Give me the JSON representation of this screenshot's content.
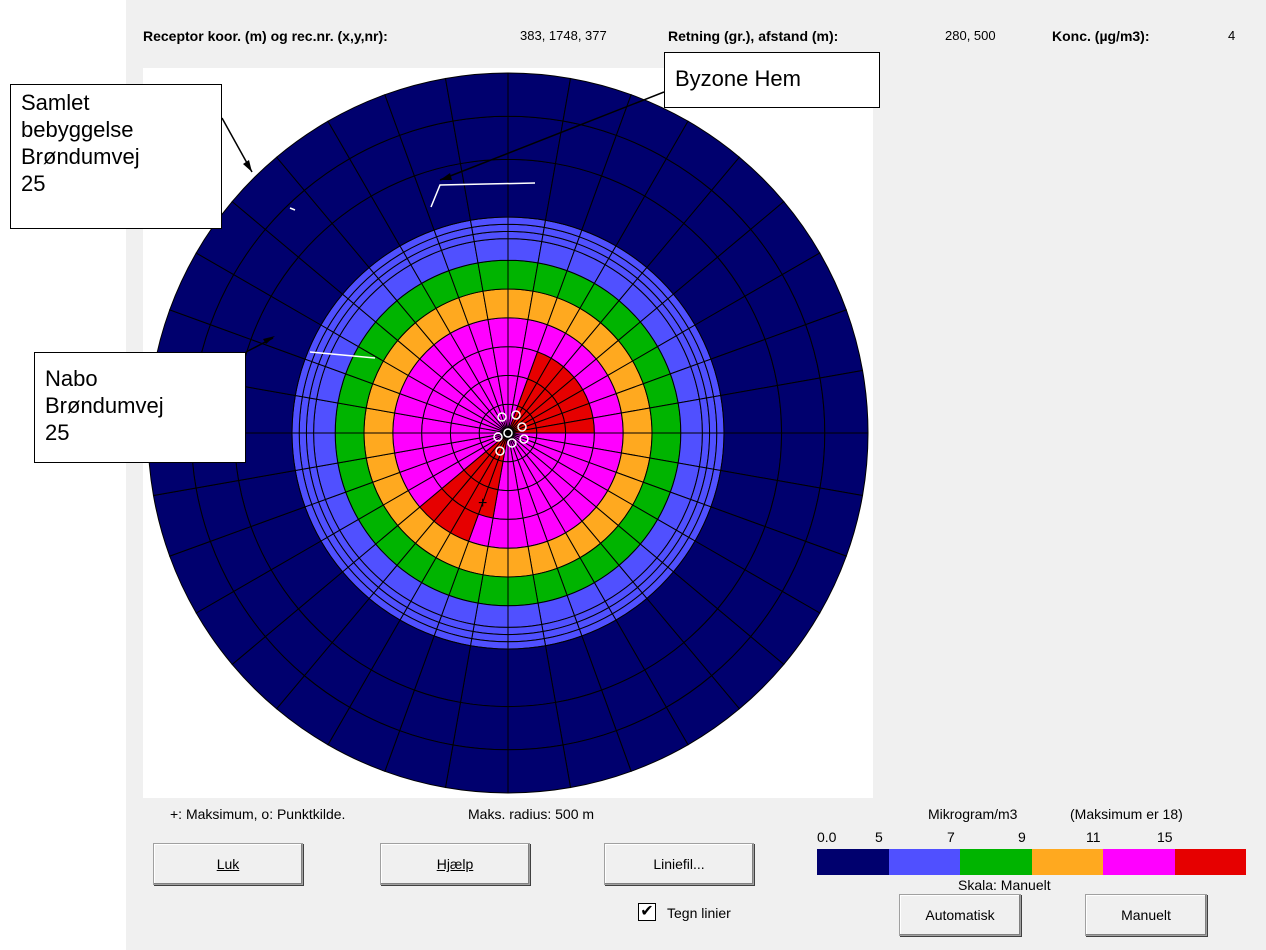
{
  "header": {
    "receptor_label": "Receptor koor. (m) og rec.nr. (x,y,nr):",
    "receptor_value": "383, 1748, 377",
    "direction_label": "Retning (gr.), afstand (m):",
    "direction_value": "280, 500",
    "conc_label": "Konc. (µg/m3):",
    "conc_value": "4"
  },
  "callouts": {
    "samlet": "Samlet\nbebyggelse\nBrøndumvej\n25",
    "byzone": "Byzone Hem",
    "nabo": "Nabo\nBrøndumvej\n25"
  },
  "legend_text": {
    "symbols": "+: Maksimum,  o: Punktkilde.",
    "radius": "Maks. radius:  500 m",
    "units": "Mikrogram/m3",
    "maximum": "(Maksimum er 18)",
    "scale": "Skala:  Manuelt"
  },
  "colorbar": {
    "ticks": [
      "0.0",
      "5",
      "7",
      "9",
      "11",
      "15"
    ],
    "colors": [
      "#00006e",
      "#5050ff",
      "#00b400",
      "#ffa91f",
      "#ff00ff",
      "#e60000"
    ]
  },
  "buttons": {
    "luk": "Luk",
    "hjaelp": "Hjælp",
    "liniefil": "Liniefil...",
    "automatisk": "Automatisk",
    "manuelt": "Manuelt"
  },
  "checkbox": {
    "label": "Tegn linier",
    "checked": true,
    "mark": "✔"
  },
  "polar": {
    "max_radius_m": 500,
    "sectors": 36,
    "ring_radii_m": [
      40,
      80,
      120,
      160,
      200,
      240,
      270,
      280,
      290,
      300,
      380,
      440,
      500
    ],
    "level_colors": [
      "#00006e",
      "#5050ff",
      "#00b400",
      "#ffa91f",
      "#ff00ff",
      "#e60000"
    ]
  }
}
